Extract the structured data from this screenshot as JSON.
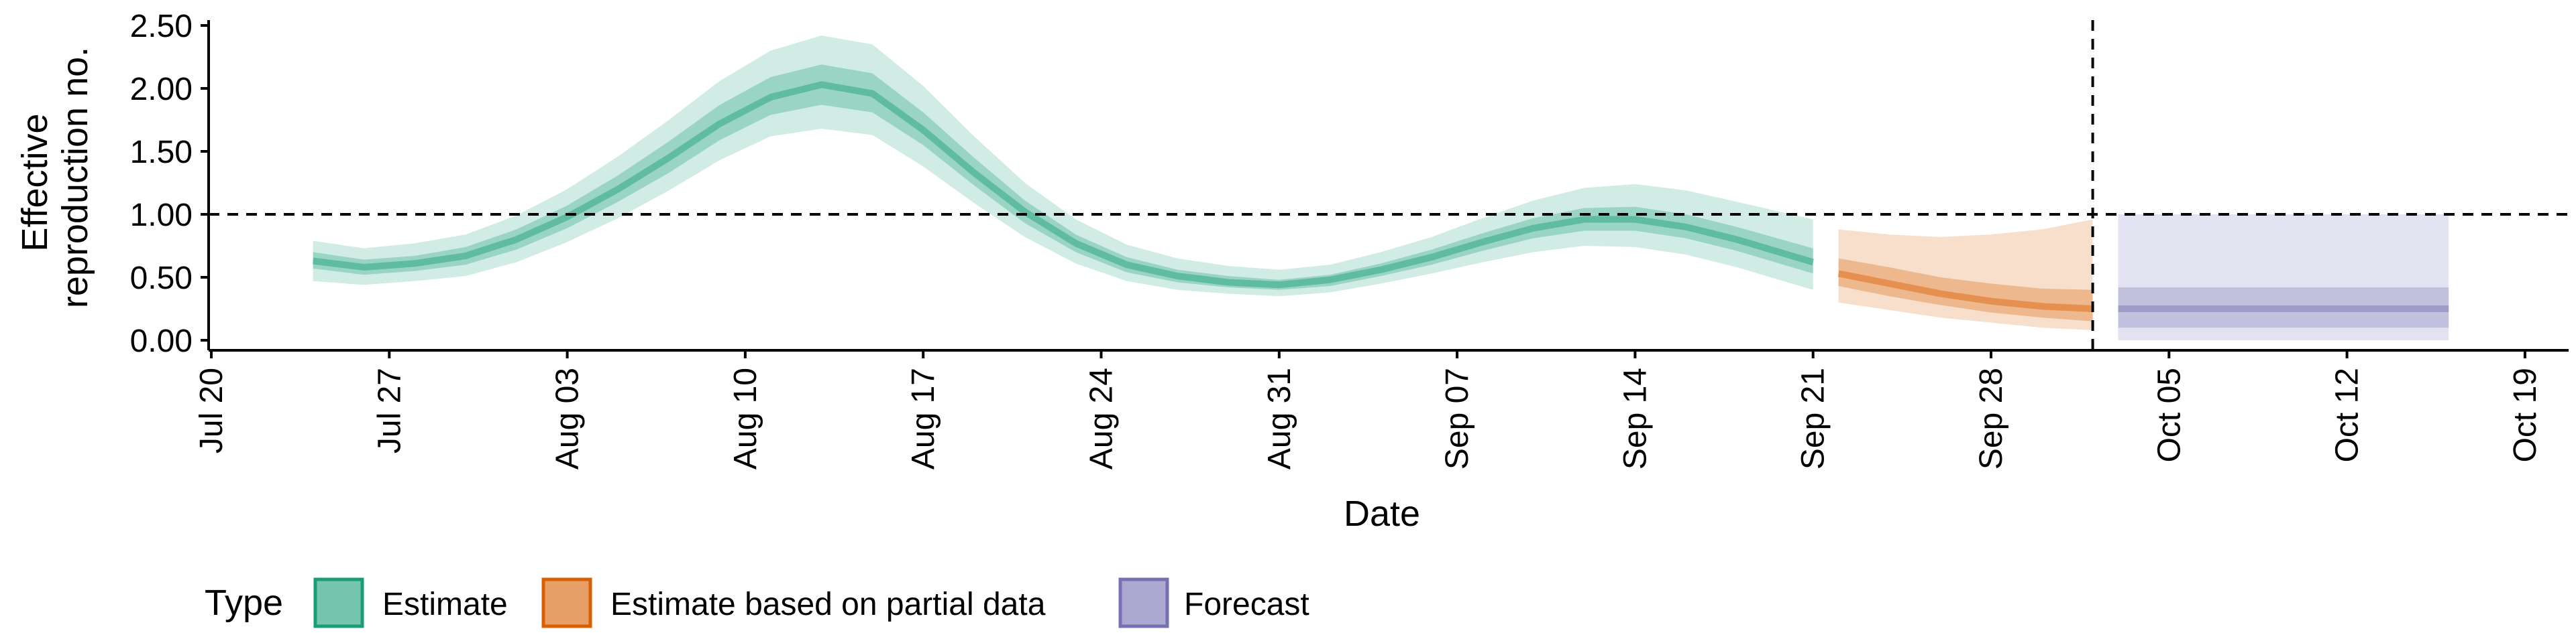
{
  "chart_data": {
    "type": "area",
    "title": "",
    "xlabel": "Date",
    "ylabel_lines": [
      "Effective",
      "reproduction no."
    ],
    "x_range": [
      "2020-07-19",
      "2020-10-20"
    ],
    "ylim": [
      0,
      2.5
    ],
    "x_ticks": [
      {
        "date": "2020-07-20",
        "label": "Jul 20"
      },
      {
        "date": "2020-07-27",
        "label": "Jul 27"
      },
      {
        "date": "2020-08-03",
        "label": "Aug 03"
      },
      {
        "date": "2020-08-10",
        "label": "Aug 10"
      },
      {
        "date": "2020-08-17",
        "label": "Aug 17"
      },
      {
        "date": "2020-08-24",
        "label": "Aug 24"
      },
      {
        "date": "2020-08-31",
        "label": "Aug 31"
      },
      {
        "date": "2020-09-07",
        "label": "Sep 07"
      },
      {
        "date": "2020-09-14",
        "label": "Sep 14"
      },
      {
        "date": "2020-09-21",
        "label": "Sep 21"
      },
      {
        "date": "2020-09-28",
        "label": "Sep 28"
      },
      {
        "date": "2020-10-05",
        "label": "Oct 05"
      },
      {
        "date": "2020-10-12",
        "label": "Oct 12"
      },
      {
        "date": "2020-10-19",
        "label": "Oct 19"
      }
    ],
    "y_ticks": [
      {
        "value": 0,
        "label": "0.00"
      },
      {
        "value": 0.5,
        "label": "0.50"
      },
      {
        "value": 1.0,
        "label": "1.00"
      },
      {
        "value": 1.5,
        "label": "1.50"
      },
      {
        "value": 2.0,
        "label": "2.00"
      },
      {
        "value": 2.5,
        "label": "2.50"
      }
    ],
    "reference_lines": {
      "horizontal_y": 1.0,
      "vertical_date": "2020-10-02"
    },
    "series": [
      {
        "name": "Estimate",
        "color": "#1b9e77",
        "points": [
          {
            "date": "2020-07-24",
            "median": 0.63,
            "lower90": 0.47,
            "upper90": 0.79,
            "lower50": 0.57,
            "upper50": 0.7
          },
          {
            "date": "2020-07-26",
            "median": 0.58,
            "lower90": 0.44,
            "upper90": 0.73,
            "lower50": 0.52,
            "upper50": 0.64
          },
          {
            "date": "2020-07-28",
            "median": 0.61,
            "lower90": 0.47,
            "upper90": 0.77,
            "lower50": 0.55,
            "upper50": 0.67
          },
          {
            "date": "2020-07-30",
            "median": 0.67,
            "lower90": 0.51,
            "upper90": 0.84,
            "lower50": 0.6,
            "upper50": 0.74
          },
          {
            "date": "2020-08-01",
            "median": 0.8,
            "lower90": 0.62,
            "upper90": 0.99,
            "lower50": 0.72,
            "upper50": 0.88
          },
          {
            "date": "2020-08-03",
            "median": 0.98,
            "lower90": 0.78,
            "upper90": 1.2,
            "lower50": 0.89,
            "upper50": 1.07
          },
          {
            "date": "2020-08-05",
            "median": 1.2,
            "lower90": 0.97,
            "upper90": 1.46,
            "lower50": 1.1,
            "upper50": 1.31
          },
          {
            "date": "2020-08-07",
            "median": 1.45,
            "lower90": 1.19,
            "upper90": 1.75,
            "lower50": 1.33,
            "upper50": 1.58
          },
          {
            "date": "2020-08-09",
            "median": 1.72,
            "lower90": 1.43,
            "upper90": 2.06,
            "lower50": 1.59,
            "upper50": 1.87
          },
          {
            "date": "2020-08-11",
            "median": 1.93,
            "lower90": 1.62,
            "upper90": 2.3,
            "lower50": 1.79,
            "upper50": 2.09
          },
          {
            "date": "2020-08-13",
            "median": 2.03,
            "lower90": 1.68,
            "upper90": 2.42,
            "lower50": 1.87,
            "upper50": 2.19
          },
          {
            "date": "2020-08-15",
            "median": 1.96,
            "lower90": 1.63,
            "upper90": 2.35,
            "lower50": 1.81,
            "upper50": 2.12
          },
          {
            "date": "2020-08-17",
            "median": 1.67,
            "lower90": 1.38,
            "upper90": 2.02,
            "lower50": 1.55,
            "upper50": 1.81
          },
          {
            "date": "2020-08-19",
            "median": 1.33,
            "lower90": 1.09,
            "upper90": 1.62,
            "lower50": 1.23,
            "upper50": 1.45
          },
          {
            "date": "2020-08-21",
            "median": 1.02,
            "lower90": 0.82,
            "upper90": 1.25,
            "lower50": 0.93,
            "upper50": 1.11
          },
          {
            "date": "2020-08-23",
            "median": 0.77,
            "lower90": 0.61,
            "upper90": 0.96,
            "lower50": 0.7,
            "upper50": 0.84
          },
          {
            "date": "2020-08-25",
            "median": 0.6,
            "lower90": 0.47,
            "upper90": 0.76,
            "lower50": 0.54,
            "upper50": 0.66
          },
          {
            "date": "2020-08-27",
            "median": 0.51,
            "lower90": 0.4,
            "upper90": 0.65,
            "lower50": 0.46,
            "upper50": 0.56
          },
          {
            "date": "2020-08-29",
            "median": 0.46,
            "lower90": 0.37,
            "upper90": 0.59,
            "lower50": 0.42,
            "upper50": 0.51
          },
          {
            "date": "2020-08-31",
            "median": 0.44,
            "lower90": 0.35,
            "upper90": 0.56,
            "lower50": 0.4,
            "upper50": 0.48
          },
          {
            "date": "2020-09-02",
            "median": 0.48,
            "lower90": 0.38,
            "upper90": 0.6,
            "lower50": 0.43,
            "upper50": 0.52
          },
          {
            "date": "2020-09-04",
            "median": 0.56,
            "lower90": 0.45,
            "upper90": 0.7,
            "lower50": 0.51,
            "upper50": 0.61
          },
          {
            "date": "2020-09-06",
            "median": 0.66,
            "lower90": 0.53,
            "upper90": 0.82,
            "lower50": 0.6,
            "upper50": 0.72
          },
          {
            "date": "2020-09-08",
            "median": 0.78,
            "lower90": 0.62,
            "upper90": 0.97,
            "lower50": 0.71,
            "upper50": 0.85
          },
          {
            "date": "2020-09-10",
            "median": 0.89,
            "lower90": 0.7,
            "upper90": 1.11,
            "lower50": 0.81,
            "upper50": 0.97
          },
          {
            "date": "2020-09-12",
            "median": 0.96,
            "lower90": 0.75,
            "upper90": 1.21,
            "lower50": 0.87,
            "upper50": 1.05
          },
          {
            "date": "2020-09-14",
            "median": 0.96,
            "lower90": 0.74,
            "upper90": 1.24,
            "lower50": 0.87,
            "upper50": 1.06
          },
          {
            "date": "2020-09-16",
            "median": 0.9,
            "lower90": 0.68,
            "upper90": 1.19,
            "lower50": 0.81,
            "upper50": 1.0
          },
          {
            "date": "2020-09-18",
            "median": 0.8,
            "lower90": 0.58,
            "upper90": 1.1,
            "lower50": 0.71,
            "upper50": 0.9
          },
          {
            "date": "2020-09-21",
            "median": 0.62,
            "lower90": 0.4,
            "upper90": 0.96,
            "lower50": 0.53,
            "upper50": 0.73
          }
        ]
      },
      {
        "name": "Estimate based on partial data",
        "color": "#d95f02",
        "points": [
          {
            "date": "2020-09-22",
            "median": 0.53,
            "lower90": 0.3,
            "upper90": 0.88,
            "lower50": 0.43,
            "upper50": 0.65
          },
          {
            "date": "2020-09-24",
            "median": 0.45,
            "lower90": 0.24,
            "upper90": 0.84,
            "lower50": 0.35,
            "upper50": 0.58
          },
          {
            "date": "2020-09-26",
            "median": 0.37,
            "lower90": 0.18,
            "upper90": 0.82,
            "lower50": 0.28,
            "upper50": 0.5
          },
          {
            "date": "2020-09-28",
            "median": 0.31,
            "lower90": 0.14,
            "upper90": 0.84,
            "lower50": 0.22,
            "upper50": 0.45
          },
          {
            "date": "2020-09-30",
            "median": 0.27,
            "lower90": 0.1,
            "upper90": 0.88,
            "lower50": 0.18,
            "upper50": 0.41
          },
          {
            "date": "2020-10-02",
            "median": 0.25,
            "lower90": 0.08,
            "upper90": 0.96,
            "lower50": 0.15,
            "upper50": 0.4
          }
        ]
      },
      {
        "name": "Forecast",
        "color": "#7570b3",
        "points": [
          {
            "date": "2020-10-03",
            "median": 0.25,
            "lower90": 0.0,
            "upper90": 1.0,
            "lower50": 0.1,
            "upper50": 0.42
          },
          {
            "date": "2020-10-16",
            "median": 0.25,
            "lower90": 0.0,
            "upper90": 1.0,
            "lower50": 0.1,
            "upper50": 0.42
          }
        ]
      }
    ],
    "legend": {
      "position": "bottom",
      "title": "Type",
      "entries": [
        "Estimate",
        "Estimate based on partial data",
        "Forecast"
      ]
    }
  }
}
